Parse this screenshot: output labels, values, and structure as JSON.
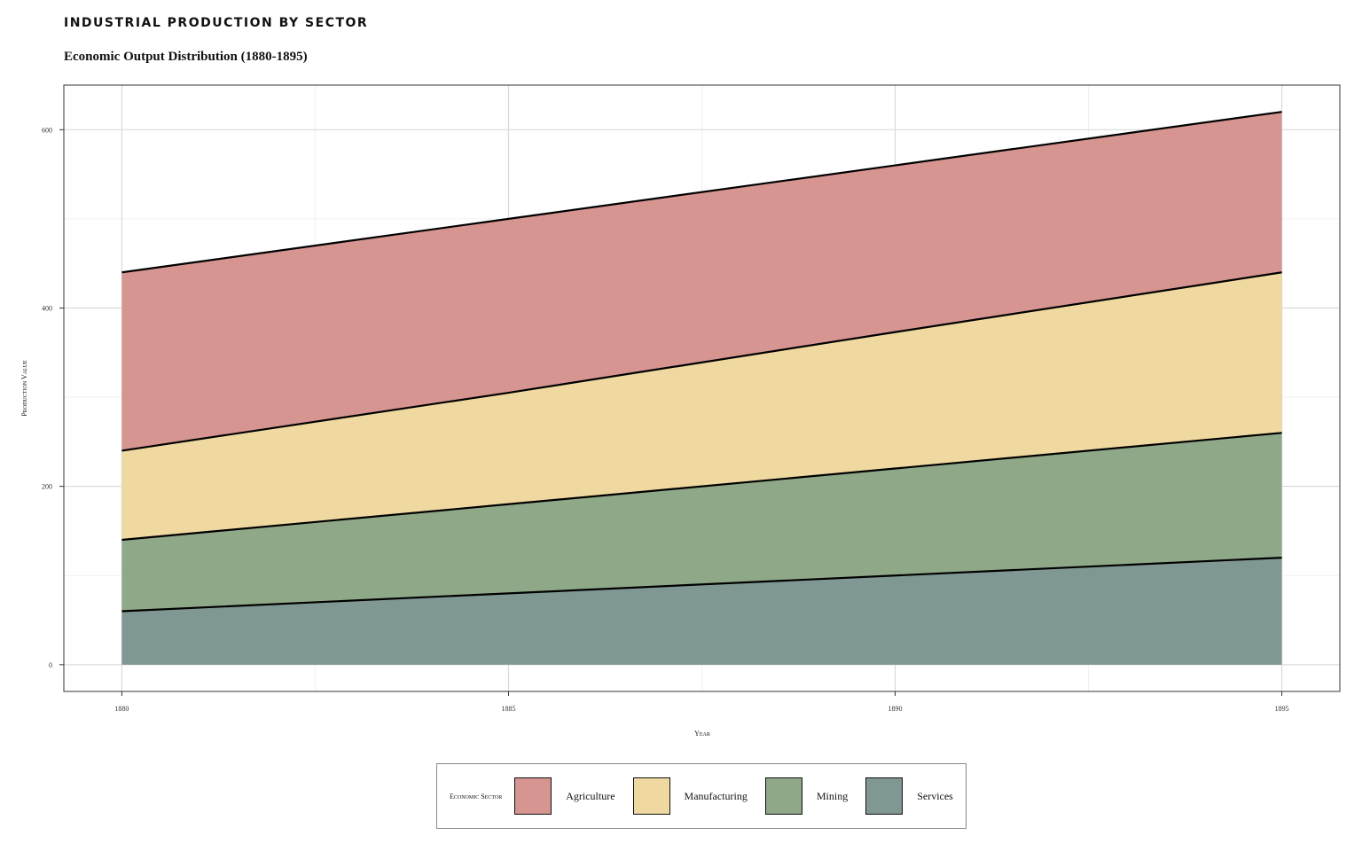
{
  "title": "INDUSTRIAL PRODUCTION BY SECTOR",
  "subtitle": "Economic Output Distribution (1880-1895)",
  "chart_data": {
    "type": "area",
    "stacked": true,
    "x": [
      1880,
      1885,
      1890,
      1895
    ],
    "x_ticks": [
      "1880",
      "1885",
      "1890",
      "1895"
    ],
    "xlim": [
      1879.25,
      1895.75
    ],
    "y_ticks": [
      "0",
      "200",
      "400",
      "600"
    ],
    "ylim": [
      -30,
      650
    ],
    "xlabel": "Year",
    "ylabel": "Production Value",
    "grid": true,
    "legend_title": "Economic Sector",
    "legend_position": "bottom",
    "series": [
      {
        "name": "Agriculture",
        "values": [
          200,
          195,
          187,
          180
        ],
        "color": "#d69590"
      },
      {
        "name": "Manufacturing",
        "values": [
          100,
          125,
          153,
          180
        ],
        "color": "#efd9a1"
      },
      {
        "name": "Mining",
        "values": [
          80,
          100,
          120,
          140
        ],
        "color": "#8fa887"
      },
      {
        "name": "Services",
        "values": [
          60,
          80,
          100,
          120
        ],
        "color": "#7f9894"
      }
    ]
  }
}
